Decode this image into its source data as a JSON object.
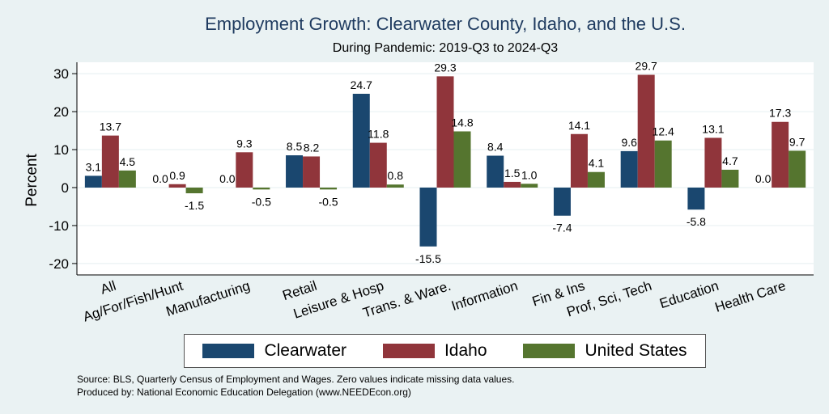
{
  "chart_data": {
    "type": "bar",
    "title": "Employment Growth: Clearwater County, Idaho, and the U.S.",
    "subtitle": "During Pandemic: 2019-Q3 to 2024-Q3",
    "ylabel": "Percent",
    "ylim": [
      -23,
      33
    ],
    "yticks": [
      -20,
      -10,
      0,
      10,
      20,
      30
    ],
    "categories": [
      "All",
      "Ag/For/Fish/Hunt",
      "Manufacturing",
      "Retail",
      "Leisure & Hosp",
      "Trans. & Ware.",
      "Information",
      "Fin & Ins",
      "Prof, Sci, Tech",
      "Education",
      "Health Care"
    ],
    "series": [
      {
        "name": "Clearwater",
        "color": "#1a476f",
        "values": [
          3.1,
          0.0,
          0.0,
          8.5,
          24.7,
          -15.5,
          8.4,
          -7.4,
          9.6,
          -5.8,
          0.0
        ]
      },
      {
        "name": "Idaho",
        "color": "#90353b",
        "values": [
          13.7,
          0.9,
          9.3,
          8.2,
          11.8,
          29.3,
          1.5,
          14.1,
          29.7,
          13.1,
          17.3
        ]
      },
      {
        "name": "United States",
        "color": "#55752f",
        "values": [
          4.5,
          -1.5,
          -0.5,
          -0.5,
          0.8,
          14.8,
          1.0,
          4.1,
          12.4,
          4.7,
          9.7
        ]
      }
    ]
  },
  "footer": {
    "source": "Source: BLS, Quarterly Census of Employment and Wages. Zero values indicate missing data values.",
    "produced": "Produced by: National Economic Education Delegation (www.NEEDEcon.org)"
  }
}
